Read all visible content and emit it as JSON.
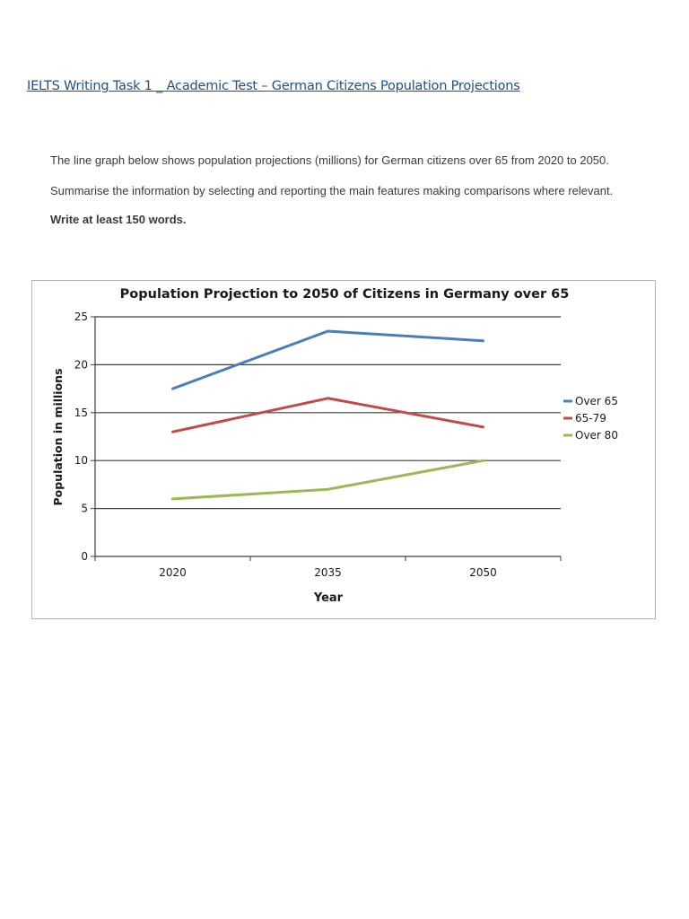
{
  "document": {
    "title": " IELTS Writing Task 1 _ Academic Test – German Citizens Population Projections",
    "prompt_line1": "The line graph below shows population projections (millions) for German citizens over 65 from 2020 to 2050.",
    "prompt_line2": "Summarise the information by selecting and reporting the main features making comparisons where relevant.",
    "prompt_line3": "Write at least 150 words."
  },
  "chart_data": {
    "type": "line",
    "title": "Population Projection to 2050 of Citizens in Germany over 65",
    "xlabel": "Year",
    "ylabel": "Population in millions",
    "categories": [
      "2020",
      "2035",
      "2050"
    ],
    "ylim": [
      0,
      25
    ],
    "yticks": [
      0,
      5,
      10,
      15,
      20,
      25
    ],
    "grid": true,
    "legend_position": "right",
    "series": [
      {
        "name": "Over 65",
        "values": [
          17.5,
          23.5,
          22.5
        ],
        "color": "#4a7ebb"
      },
      {
        "name": "65-79",
        "values": [
          13,
          16.5,
          13.5
        ],
        "color": "#be4b48"
      },
      {
        "name": "Over 80",
        "values": [
          6,
          7,
          10
        ],
        "color": "#98b954"
      }
    ]
  }
}
